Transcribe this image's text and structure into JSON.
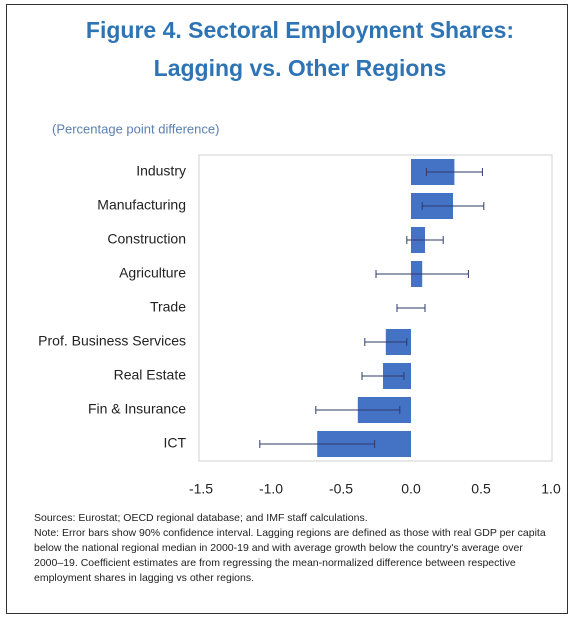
{
  "chart_data": {
    "type": "bar",
    "orientation": "horizontal",
    "title": "Figure 4. Sectoral Employment Shares:",
    "title_line2": "Lagging vs. Other Regions",
    "subtitle": "(Percentage point difference)",
    "categories": [
      "Industry",
      "Manufacturing",
      "Construction",
      "Agriculture",
      "Trade",
      "Prof. Business Services",
      "Real Estate",
      "Fin & Insurance",
      "ICT"
    ],
    "values": [
      0.31,
      0.3,
      0.1,
      0.08,
      0.0,
      -0.18,
      -0.2,
      -0.38,
      -0.67
    ],
    "errors": [
      0.2,
      0.22,
      0.13,
      0.33,
      0.1,
      0.15,
      0.15,
      0.3,
      0.41
    ],
    "color": "#4472c4",
    "error_color": "#2f3a6b",
    "xlim": [
      -1.5,
      1.0
    ],
    "xticks": [
      -1.5,
      {
        "value": -1.0,
        "label": "-1.0"
      },
      -0.5,
      {
        "value": 0.0,
        "label": "0.0"
      },
      0.5,
      {
        "value": 1.0,
        "label": "1.0"
      }
    ],
    "sources": "Sources: Eurostat; OECD regional database; and IMF staff calculations.",
    "note": "Note: Error bars show 90% confidence interval. Lagging regions are defined as those with real GDP per capita below the national regional median in 2000-19 and with average growth below the country's average over 2000–19. Coefficient estimates are from regressing the mean-normalized difference between respective employment shares in lagging vs other regions."
  }
}
